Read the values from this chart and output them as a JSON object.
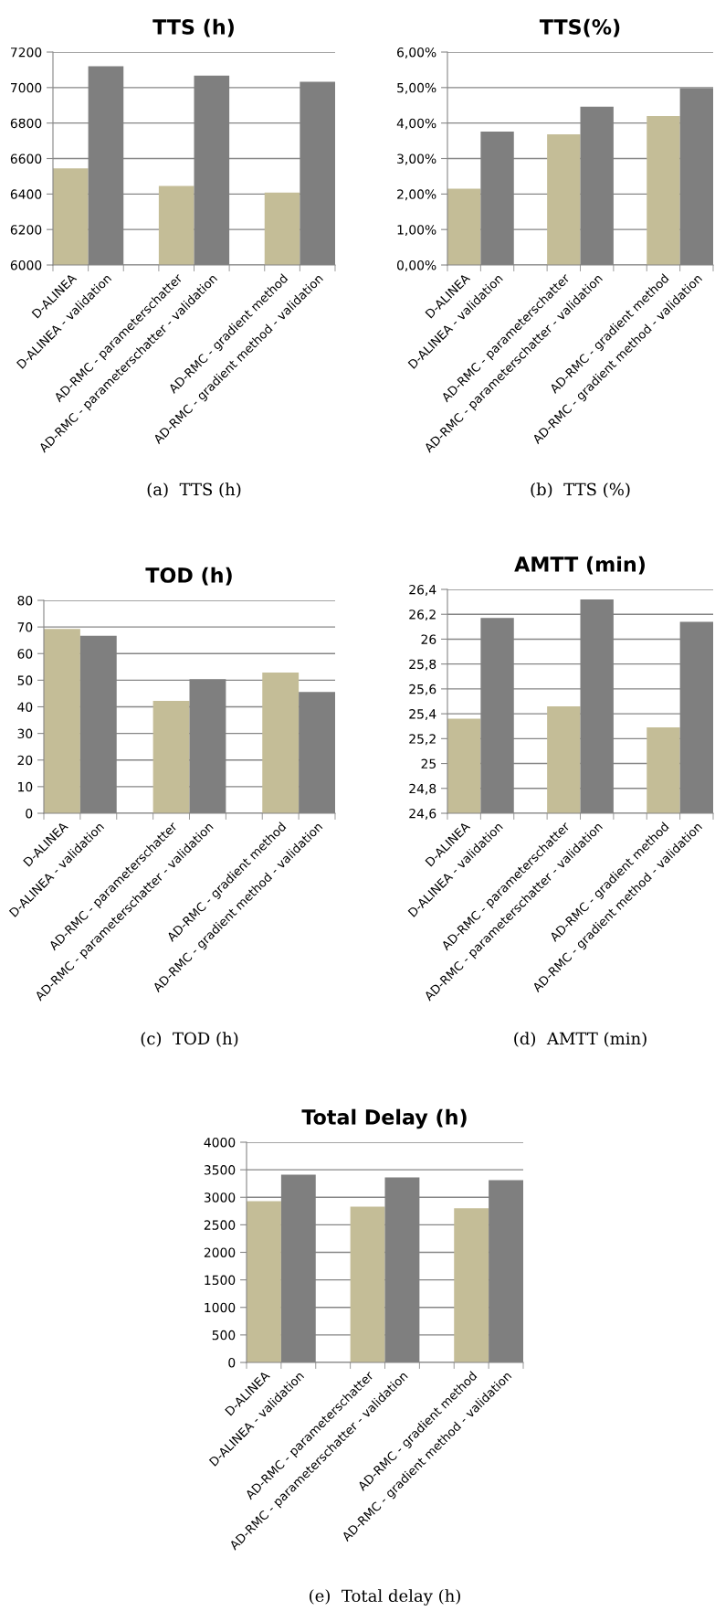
{
  "chart_data": [
    {
      "type": "bar",
      "title": "TTS (h)",
      "categories": [
        "D-ALINEA",
        "D-ALINEA - validation",
        null,
        "AD-RMC - parameterschatter",
        "AD-RMC - parameterschatter - validation",
        null,
        "AD-RMC - gradient method",
        "AD-RMC - gradient method - validation"
      ],
      "values": [
        6545,
        7120,
        null,
        6445,
        7068,
        null,
        6408,
        7032
      ],
      "colors": [
        "#c4bd97",
        "#7f7f7f",
        null,
        "#c4bd97",
        "#7f7f7f",
        null,
        "#c4bd97",
        "#7f7f7f"
      ],
      "ylim": [
        6000,
        7200
      ],
      "yticks": [
        6000,
        6200,
        6400,
        6600,
        6800,
        7000,
        7200
      ],
      "grid": "y",
      "annotations": [
        "(a)  TTS (h)"
      ]
    },
    {
      "type": "bar",
      "title": "TTS(%)",
      "categories": [
        "D-ALINEA",
        "D-ALINEA - validation",
        null,
        "AD-RMC - parameterschatter",
        "AD-RMC - parameterschatter - validation",
        null,
        "AD-RMC - gradient method",
        "AD-RMC - gradient method - validation"
      ],
      "values": [
        2.15,
        3.76,
        null,
        3.68,
        4.46,
        null,
        4.2,
        4.98
      ],
      "colors": [
        "#c4bd97",
        "#7f7f7f",
        null,
        "#c4bd97",
        "#7f7f7f",
        null,
        "#c4bd97",
        "#7f7f7f"
      ],
      "ylim": [
        0,
        6
      ],
      "yticks": [
        {
          "value": 0,
          "label": "0,00%"
        },
        {
          "value": 1,
          "label": "1,00%"
        },
        {
          "value": 2,
          "label": "2,00%"
        },
        {
          "value": 3,
          "label": "3,00%"
        },
        {
          "value": 4,
          "label": "4,00%"
        },
        {
          "value": 5,
          "label": "5,00%"
        },
        {
          "value": 6,
          "label": "6,00%"
        }
      ],
      "grid": "y",
      "annotations": [
        "(b)  TTS (%)"
      ]
    },
    {
      "type": "bar",
      "title": "TOD (h)",
      "categories": [
        "D-ALINEA",
        "D-ALINEA - validation",
        null,
        "AD-RMC - parameterschatter",
        "AD-RMC - parameterschatter - validation",
        null,
        "AD-RMC - gradient method",
        "AD-RMC - gradient method - validation"
      ],
      "values": [
        69.3,
        66.7,
        null,
        42.2,
        50.4,
        null,
        52.9,
        45.6
      ],
      "colors": [
        "#c4bd97",
        "#7f7f7f",
        null,
        "#c4bd97",
        "#7f7f7f",
        null,
        "#c4bd97",
        "#7f7f7f"
      ],
      "ylim": [
        0,
        80
      ],
      "yticks": [
        0,
        10,
        20,
        30,
        40,
        50,
        60,
        70,
        80
      ],
      "grid": "y",
      "annotations": [
        "(c)  TOD (h)"
      ]
    },
    {
      "type": "bar",
      "title": "AMTT (min)",
      "categories": [
        "D-ALINEA",
        "D-ALINEA - validation",
        null,
        "AD-RMC - parameterschatter",
        "AD-RMC - parameterschatter - validation",
        null,
        "AD-RMC - gradient method",
        "AD-RMC - gradient method - validation"
      ],
      "values": [
        25.36,
        26.17,
        null,
        25.46,
        26.32,
        null,
        25.29,
        26.14
      ],
      "colors": [
        "#c4bd97",
        "#7f7f7f",
        null,
        "#c4bd97",
        "#7f7f7f",
        null,
        "#c4bd97",
        "#7f7f7f"
      ],
      "ylim": [
        24.6,
        26.4
      ],
      "yticks": [
        {
          "value": 24.6,
          "label": "24,6"
        },
        {
          "value": 24.8,
          "label": "24,8"
        },
        25,
        {
          "value": 25.2,
          "label": "25,2"
        },
        {
          "value": 25.4,
          "label": "25,4"
        },
        {
          "value": 25.6,
          "label": "25,6"
        },
        {
          "value": 25.8,
          "label": "25,8"
        },
        26,
        {
          "value": 26.2,
          "label": "26,2"
        },
        {
          "value": 26.4,
          "label": "26,4"
        }
      ],
      "grid": "y",
      "annotations": [
        "(d)  AMTT (min)"
      ]
    },
    {
      "type": "bar",
      "title": "Total Delay (h)",
      "categories": [
        "D-ALINEA",
        "D-ALINEA - validation",
        null,
        "AD-RMC - parameterschatter",
        "AD-RMC - parameterschatter - validation",
        null,
        "AD-RMC - gradient method",
        "AD-RMC - gradient method - validation"
      ],
      "values": [
        2930,
        3410,
        null,
        2830,
        3360,
        null,
        2800,
        3310
      ],
      "colors": [
        "#c4bd97",
        "#7f7f7f",
        null,
        "#c4bd97",
        "#7f7f7f",
        null,
        "#c4bd97",
        "#7f7f7f"
      ],
      "ylim": [
        0,
        4000
      ],
      "yticks": [
        0,
        500,
        1000,
        1500,
        2000,
        2500,
        3000,
        3500,
        4000
      ],
      "grid": "y",
      "annotations": [
        "(e)  Total delay (h)"
      ]
    }
  ]
}
